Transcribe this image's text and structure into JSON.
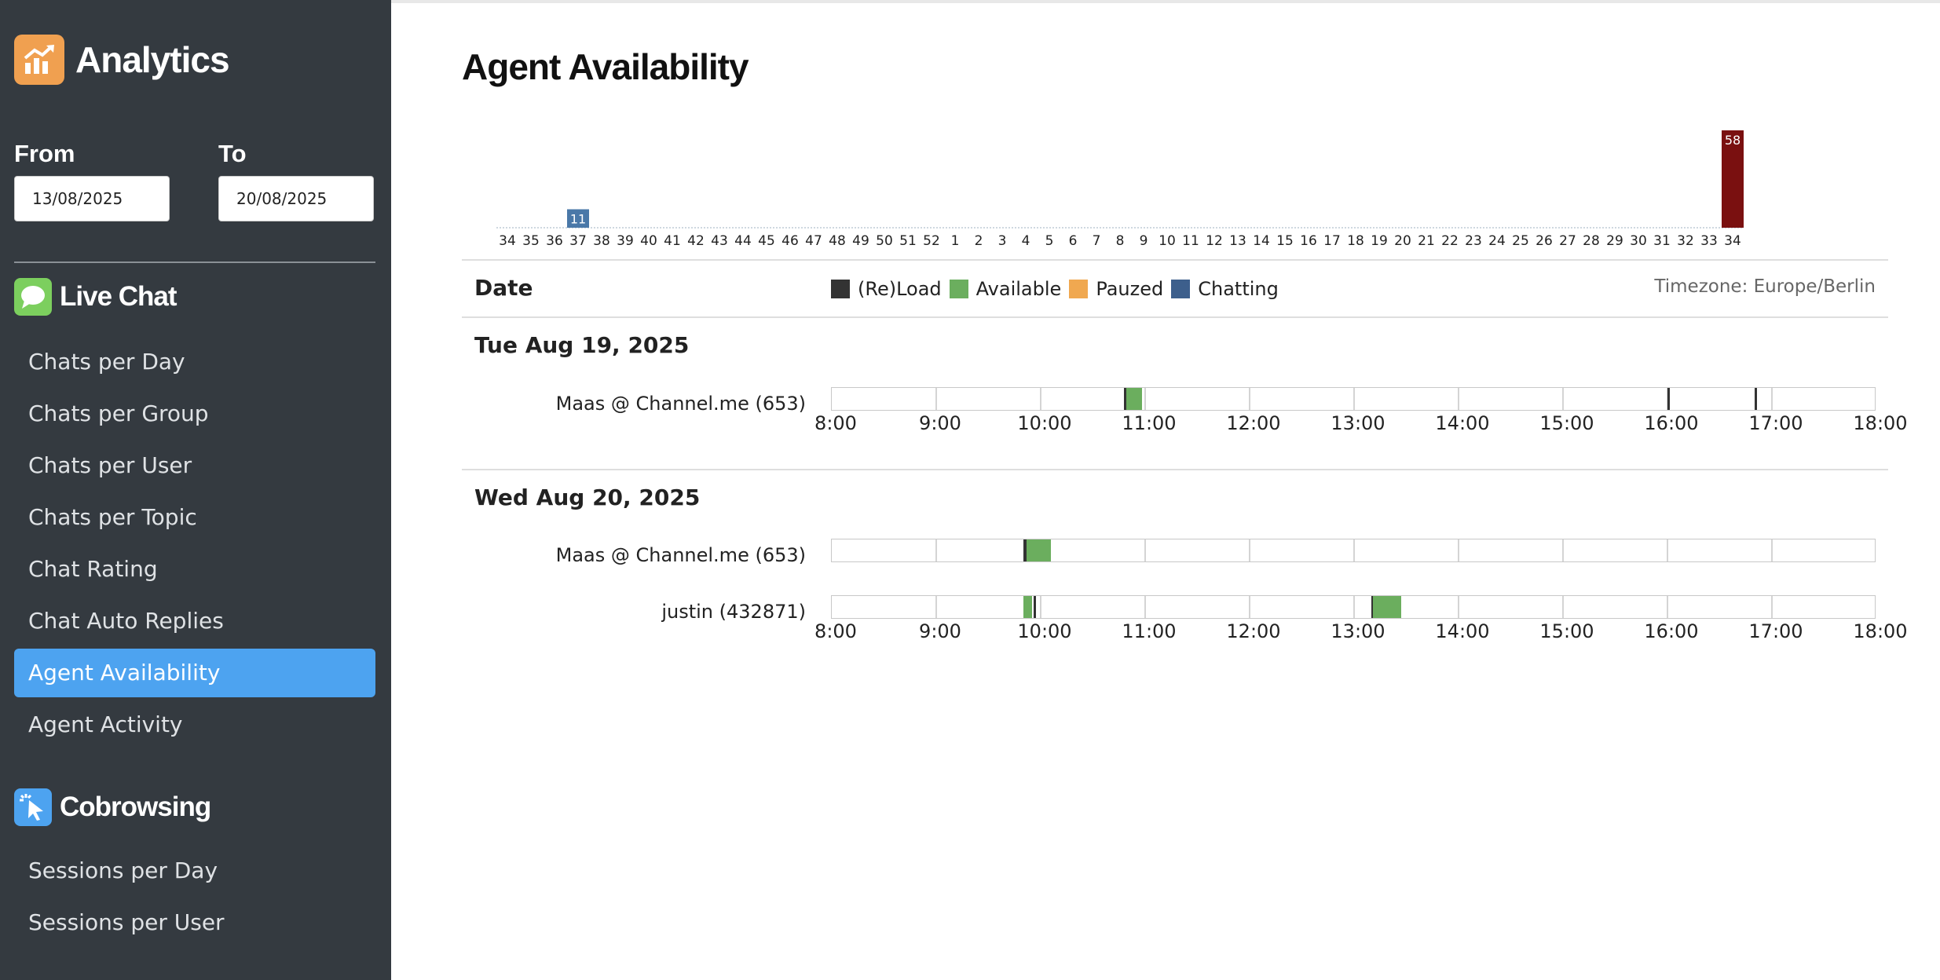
{
  "sidebar": {
    "app_title": "Analytics",
    "app_icon": "trending-chart-icon",
    "from_label": "From",
    "from_value": "13/08/2025",
    "to_label": "To",
    "to_value": "20/08/2025",
    "sections": [
      {
        "title": "Live Chat",
        "icon": "chat-bubble-icon",
        "icon_color": "#7ccf5e",
        "items": [
          {
            "label": "Chats per Day",
            "active": false
          },
          {
            "label": "Chats per Group",
            "active": false
          },
          {
            "label": "Chats per User",
            "active": false
          },
          {
            "label": "Chats per Topic",
            "active": false
          },
          {
            "label": "Chat Rating",
            "active": false
          },
          {
            "label": "Chat Auto Replies",
            "active": false
          },
          {
            "label": "Agent Availability",
            "active": true
          },
          {
            "label": "Agent Activity",
            "active": false
          }
        ]
      },
      {
        "title": "Cobrowsing",
        "icon": "cursor-click-icon",
        "icon_color": "#4da3f0",
        "items": [
          {
            "label": "Sessions per Day",
            "active": false
          },
          {
            "label": "Sessions per User",
            "active": false
          }
        ]
      }
    ]
  },
  "main": {
    "page_title": "Agent Availability",
    "table": {
      "date_header": "Date",
      "timezone": "Timezone: Europe/Berlin",
      "legend": [
        {
          "label": "(Re)Load",
          "color": "#333333"
        },
        {
          "label": "Available",
          "color": "#6bae5e"
        },
        {
          "label": "Pauzed",
          "color": "#f0a850"
        },
        {
          "label": "Chatting",
          "color": "#3d5f8c"
        }
      ]
    },
    "axis_hours": [
      "8:00",
      "9:00",
      "10:00",
      "11:00",
      "12:00",
      "13:00",
      "14:00",
      "15:00",
      "16:00",
      "17:00",
      "18:00"
    ],
    "days": [
      {
        "title": "Tue Aug 19, 2025",
        "agents": [
          {
            "name": "Maas @ Channel.me (653)",
            "segments": [
              {
                "start": "10:48",
                "end": "10:49",
                "state": "(Re)Load"
              },
              {
                "start": "10:49",
                "end": "10:58",
                "state": "Available"
              },
              {
                "start": "16:00",
                "end": "16:01",
                "state": "(Re)Load"
              },
              {
                "start": "16:50",
                "end": "16:51",
                "state": "(Re)Load"
              }
            ]
          }
        ]
      },
      {
        "title": "Wed Aug 20, 2025",
        "agents": [
          {
            "name": "Maas @ Channel.me (653)",
            "segments": [
              {
                "start": "09:50",
                "end": "09:52",
                "state": "(Re)Load"
              },
              {
                "start": "09:52",
                "end": "10:06",
                "state": "Available"
              }
            ]
          },
          {
            "name": "justin (432871)",
            "segments": [
              {
                "start": "09:50",
                "end": "09:55",
                "state": "Available"
              },
              {
                "start": "09:56",
                "end": "09:57",
                "state": "(Re)Load"
              },
              {
                "start": "13:10",
                "end": "13:11",
                "state": "(Re)Load"
              },
              {
                "start": "13:11",
                "end": "13:27",
                "state": "Available"
              }
            ]
          }
        ]
      }
    ]
  },
  "chart_data": {
    "type": "bar",
    "title": "",
    "xlabel": "",
    "ylabel": "",
    "categories": [
      "34",
      "35",
      "36",
      "37",
      "38",
      "39",
      "40",
      "41",
      "42",
      "43",
      "44",
      "45",
      "46",
      "47",
      "48",
      "49",
      "50",
      "51",
      "52",
      "1",
      "2",
      "3",
      "4",
      "5",
      "6",
      "7",
      "8",
      "9",
      "10",
      "11",
      "12",
      "13",
      "14",
      "15",
      "16",
      "17",
      "18",
      "19",
      "20",
      "21",
      "22",
      "23",
      "24",
      "25",
      "26",
      "27",
      "28",
      "29",
      "30",
      "31",
      "32",
      "33",
      "34"
    ],
    "values": [
      0,
      0,
      0,
      11,
      0,
      0,
      0,
      0,
      0,
      0,
      0,
      0,
      0,
      0,
      0,
      0,
      0,
      0,
      0,
      0,
      0,
      0,
      0,
      0,
      0,
      0,
      0,
      0,
      0,
      0,
      0,
      0,
      0,
      0,
      0,
      0,
      0,
      0,
      0,
      0,
      0,
      0,
      0,
      0,
      0,
      0,
      0,
      0,
      0,
      0,
      0,
      0,
      58
    ],
    "bar_colors": {
      "3": "#4a78a8",
      "52": "#7a1010"
    },
    "data_labels": {
      "3": "11",
      "52": "58"
    },
    "ylim": [
      0,
      58
    ]
  }
}
